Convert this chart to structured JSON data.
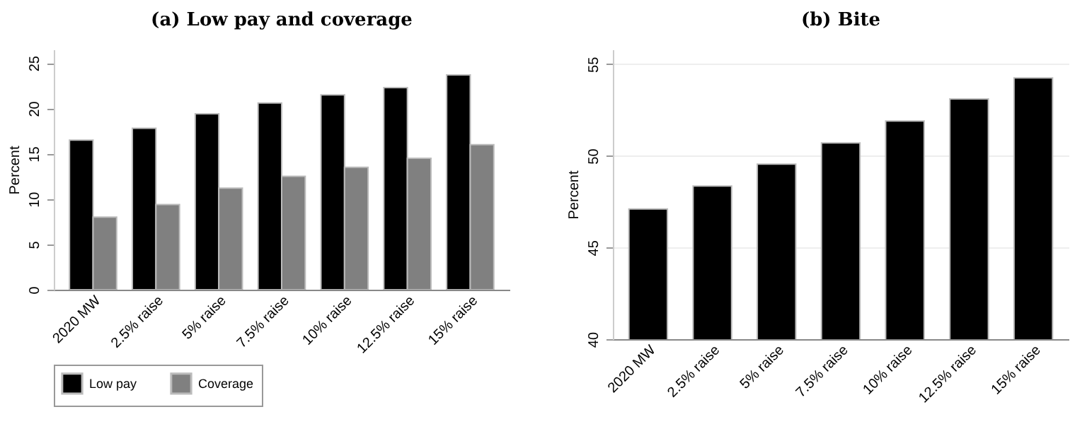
{
  "chart_data": [
    {
      "type": "bar",
      "title": "(a) Low pay and coverage",
      "ylabel": "Percent",
      "categories": [
        "2020 MW",
        "2.5% raise",
        "5% raise",
        "7.5% raise",
        "10% raise",
        "12.5% raise",
        "15% raise"
      ],
      "series": [
        {
          "name": "Low pay",
          "color": "#000000",
          "values": [
            16.5,
            17.8,
            19.4,
            20.6,
            21.5,
            22.3,
            23.7
          ]
        },
        {
          "name": "Coverage",
          "color": "#808080",
          "values": [
            8.0,
            9.4,
            11.2,
            12.5,
            13.5,
            14.5,
            16.0
          ]
        }
      ],
      "ylim": [
        0,
        26.5
      ],
      "yticks": [
        0,
        5,
        10,
        15,
        20,
        25
      ],
      "legend": "bottom",
      "grid": false
    },
    {
      "type": "bar",
      "title": "(b) Bite",
      "ylabel": "Percent",
      "categories": [
        "2020 MW",
        "2.5% raise",
        "5% raise",
        "7.5% raise",
        "10% raise",
        "12.5% raise",
        "15% raise"
      ],
      "series": [
        {
          "color": "#000000",
          "values": [
            47.1,
            48.35,
            49.55,
            50.7,
            51.9,
            53.1,
            54.25
          ]
        }
      ],
      "ylim": [
        40,
        55.8
      ],
      "yticks": [
        40,
        45,
        50,
        55
      ],
      "grid": "y"
    }
  ]
}
